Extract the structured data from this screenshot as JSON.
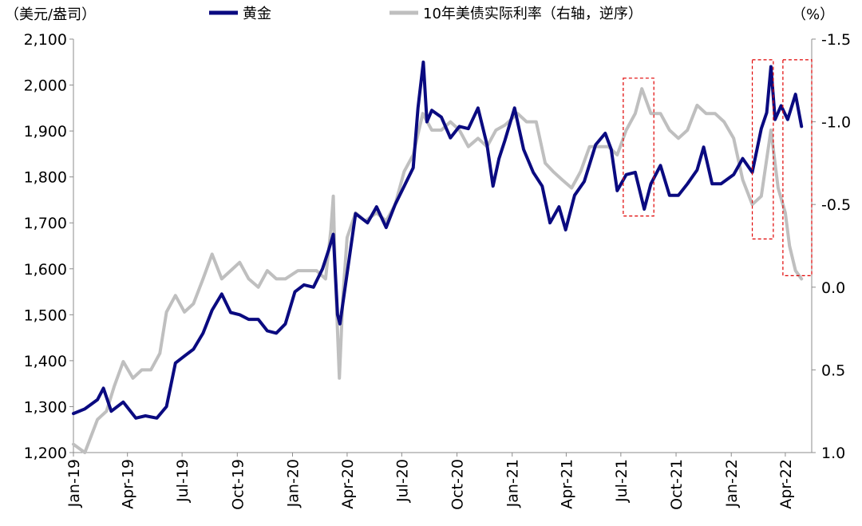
{
  "chart_data": {
    "type": "line",
    "units": {
      "left": "（美元/盎司）",
      "right": "（%）"
    },
    "legend": [
      {
        "label": "黄金",
        "color": "#0a0a80",
        "series_key": "gold"
      },
      {
        "label": "10年美债实际利率（右轴，逆序）",
        "color": "#bfbfbf",
        "series_key": "real_rate"
      }
    ],
    "x_ticks": [
      "Jan-19",
      "Apr-19",
      "Jul-19",
      "Oct-19",
      "Jan-20",
      "Apr-20",
      "Jul-20",
      "Oct-20",
      "Jan-21",
      "Apr-21",
      "Jul-21",
      "Oct-21",
      "Jan-22",
      "Apr-22"
    ],
    "left_axis": {
      "min": 1200,
      "max": 2100,
      "ticks": [
        "1,200",
        "1,300",
        "1,400",
        "1,500",
        "1,600",
        "1,700",
        "1,800",
        "1,900",
        "2,000",
        "2,100"
      ],
      "values": [
        1200,
        1300,
        1400,
        1500,
        1600,
        1700,
        1800,
        1900,
        2000,
        2100
      ]
    },
    "right_axis": {
      "min": -1.5,
      "max": 1.0,
      "inverted": true,
      "ticks": [
        "-1.5",
        "-1.0",
        "-0.5",
        "0.0",
        "0.5",
        "1.0"
      ],
      "values": [
        -1.5,
        -1.0,
        -0.5,
        0.0,
        0.5,
        1.0
      ],
      "tick_colors": [
        "#e00000",
        "#e00000",
        "#e00000",
        "#000000",
        "#000000",
        "#000000"
      ]
    },
    "series": [
      {
        "key": "gold",
        "name": "黄金",
        "axis": "left",
        "color": "#0a0a80",
        "points": [
          [
            "2019-01-01",
            1285
          ],
          [
            "2019-01-20",
            1295
          ],
          [
            "2019-02-10",
            1315
          ],
          [
            "2019-02-20",
            1340
          ],
          [
            "2019-03-05",
            1290
          ],
          [
            "2019-03-25",
            1310
          ],
          [
            "2019-04-15",
            1275
          ],
          [
            "2019-05-01",
            1280
          ],
          [
            "2019-05-20",
            1275
          ],
          [
            "2019-06-05",
            1300
          ],
          [
            "2019-06-20",
            1395
          ],
          [
            "2019-07-05",
            1410
          ],
          [
            "2019-07-20",
            1425
          ],
          [
            "2019-08-05",
            1460
          ],
          [
            "2019-08-20",
            1510
          ],
          [
            "2019-09-05",
            1545
          ],
          [
            "2019-09-20",
            1505
          ],
          [
            "2019-10-05",
            1500
          ],
          [
            "2019-10-20",
            1490
          ],
          [
            "2019-11-05",
            1490
          ],
          [
            "2019-11-20",
            1465
          ],
          [
            "2019-12-05",
            1460
          ],
          [
            "2019-12-20",
            1480
          ],
          [
            "2020-01-05",
            1550
          ],
          [
            "2020-01-20",
            1565
          ],
          [
            "2020-02-05",
            1560
          ],
          [
            "2020-02-20",
            1600
          ],
          [
            "2020-03-01",
            1640
          ],
          [
            "2020-03-09",
            1675
          ],
          [
            "2020-03-16",
            1500
          ],
          [
            "2020-03-20",
            1480
          ],
          [
            "2020-04-01",
            1590
          ],
          [
            "2020-04-15",
            1720
          ],
          [
            "2020-05-05",
            1700
          ],
          [
            "2020-05-20",
            1735
          ],
          [
            "2020-06-05",
            1690
          ],
          [
            "2020-06-20",
            1740
          ],
          [
            "2020-07-05",
            1780
          ],
          [
            "2020-07-20",
            1820
          ],
          [
            "2020-07-28",
            1950
          ],
          [
            "2020-08-06",
            2050
          ],
          [
            "2020-08-12",
            1920
          ],
          [
            "2020-08-20",
            1945
          ],
          [
            "2020-09-05",
            1930
          ],
          [
            "2020-09-20",
            1885
          ],
          [
            "2020-10-05",
            1910
          ],
          [
            "2020-10-20",
            1905
          ],
          [
            "2020-11-05",
            1950
          ],
          [
            "2020-11-20",
            1870
          ],
          [
            "2020-11-30",
            1780
          ],
          [
            "2020-12-10",
            1840
          ],
          [
            "2020-12-20",
            1880
          ],
          [
            "2021-01-05",
            1950
          ],
          [
            "2021-01-20",
            1860
          ],
          [
            "2021-02-05",
            1810
          ],
          [
            "2021-02-20",
            1780
          ],
          [
            "2021-03-05",
            1700
          ],
          [
            "2021-03-20",
            1735
          ],
          [
            "2021-03-31",
            1685
          ],
          [
            "2021-04-15",
            1760
          ],
          [
            "2021-05-01",
            1790
          ],
          [
            "2021-05-20",
            1870
          ],
          [
            "2021-06-05",
            1895
          ],
          [
            "2021-06-15",
            1860
          ],
          [
            "2021-06-25",
            1770
          ],
          [
            "2021-07-10",
            1805
          ],
          [
            "2021-07-25",
            1810
          ],
          [
            "2021-08-09",
            1730
          ],
          [
            "2021-08-20",
            1785
          ],
          [
            "2021-09-05",
            1825
          ],
          [
            "2021-09-20",
            1760
          ],
          [
            "2021-10-05",
            1760
          ],
          [
            "2021-10-20",
            1785
          ],
          [
            "2021-11-05",
            1815
          ],
          [
            "2021-11-16",
            1865
          ],
          [
            "2021-11-30",
            1785
          ],
          [
            "2021-12-15",
            1785
          ],
          [
            "2022-01-05",
            1805
          ],
          [
            "2022-01-20",
            1840
          ],
          [
            "2022-02-05",
            1810
          ],
          [
            "2022-02-20",
            1905
          ],
          [
            "2022-03-01",
            1940
          ],
          [
            "2022-03-08",
            2040
          ],
          [
            "2022-03-15",
            1925
          ],
          [
            "2022-03-25",
            1955
          ],
          [
            "2022-04-05",
            1925
          ],
          [
            "2022-04-18",
            1980
          ],
          [
            "2022-04-28",
            1910
          ]
        ]
      },
      {
        "key": "real_rate",
        "name": "10年美债实际利率（右轴，逆序）",
        "axis": "right",
        "color": "#bfbfbf",
        "points": [
          [
            "2019-01-01",
            0.95
          ],
          [
            "2019-01-20",
            1.0
          ],
          [
            "2019-02-10",
            0.8
          ],
          [
            "2019-02-25",
            0.75
          ],
          [
            "2019-03-10",
            0.6
          ],
          [
            "2019-03-25",
            0.45
          ],
          [
            "2019-04-10",
            0.55
          ],
          [
            "2019-04-25",
            0.5
          ],
          [
            "2019-05-10",
            0.5
          ],
          [
            "2019-05-25",
            0.4
          ],
          [
            "2019-06-05",
            0.15
          ],
          [
            "2019-06-20",
            0.05
          ],
          [
            "2019-07-05",
            0.15
          ],
          [
            "2019-07-20",
            0.1
          ],
          [
            "2019-08-05",
            -0.05
          ],
          [
            "2019-08-20",
            -0.2
          ],
          [
            "2019-09-05",
            -0.05
          ],
          [
            "2019-09-20",
            -0.1
          ],
          [
            "2019-10-05",
            -0.15
          ],
          [
            "2019-10-20",
            -0.05
          ],
          [
            "2019-11-05",
            0.0
          ],
          [
            "2019-11-20",
            -0.1
          ],
          [
            "2019-12-05",
            -0.05
          ],
          [
            "2019-12-20",
            -0.05
          ],
          [
            "2020-01-10",
            -0.1
          ],
          [
            "2020-01-25",
            -0.1
          ],
          [
            "2020-02-10",
            -0.1
          ],
          [
            "2020-02-25",
            -0.05
          ],
          [
            "2020-03-05",
            -0.35
          ],
          [
            "2020-03-09",
            -0.55
          ],
          [
            "2020-03-12",
            -0.1
          ],
          [
            "2020-03-19",
            0.55
          ],
          [
            "2020-03-25",
            0.05
          ],
          [
            "2020-04-01",
            -0.3
          ],
          [
            "2020-04-15",
            -0.45
          ],
          [
            "2020-05-01",
            -0.4
          ],
          [
            "2020-05-20",
            -0.45
          ],
          [
            "2020-06-05",
            -0.4
          ],
          [
            "2020-06-20",
            -0.5
          ],
          [
            "2020-07-05",
            -0.7
          ],
          [
            "2020-07-20",
            -0.8
          ],
          [
            "2020-08-05",
            -1.05
          ],
          [
            "2020-08-20",
            -0.95
          ],
          [
            "2020-09-05",
            -0.95
          ],
          [
            "2020-09-20",
            -1.0
          ],
          [
            "2020-10-05",
            -0.95
          ],
          [
            "2020-10-20",
            -0.85
          ],
          [
            "2020-11-05",
            -0.9
          ],
          [
            "2020-11-20",
            -0.85
          ],
          [
            "2020-12-05",
            -0.95
          ],
          [
            "2020-12-20",
            -0.98
          ],
          [
            "2021-01-10",
            -1.05
          ],
          [
            "2021-01-25",
            -1.0
          ],
          [
            "2021-02-10",
            -1.0
          ],
          [
            "2021-02-25",
            -0.75
          ],
          [
            "2021-03-10",
            -0.7
          ],
          [
            "2021-03-25",
            -0.65
          ],
          [
            "2021-04-10",
            -0.6
          ],
          [
            "2021-04-25",
            -0.7
          ],
          [
            "2021-05-10",
            -0.85
          ],
          [
            "2021-05-25",
            -0.85
          ],
          [
            "2021-06-10",
            -0.85
          ],
          [
            "2021-06-25",
            -0.8
          ],
          [
            "2021-07-10",
            -0.95
          ],
          [
            "2021-07-25",
            -1.05
          ],
          [
            "2021-08-05",
            -1.2
          ],
          [
            "2021-08-20",
            -1.05
          ],
          [
            "2021-09-05",
            -1.05
          ],
          [
            "2021-09-20",
            -0.95
          ],
          [
            "2021-10-05",
            -0.9
          ],
          [
            "2021-10-20",
            -0.95
          ],
          [
            "2021-11-05",
            -1.1
          ],
          [
            "2021-11-20",
            -1.05
          ],
          [
            "2021-12-05",
            -1.05
          ],
          [
            "2021-12-20",
            -1.0
          ],
          [
            "2022-01-05",
            -0.9
          ],
          [
            "2022-01-20",
            -0.65
          ],
          [
            "2022-02-05",
            -0.5
          ],
          [
            "2022-02-20",
            -0.55
          ],
          [
            "2022-03-08",
            -0.95
          ],
          [
            "2022-03-20",
            -0.6
          ],
          [
            "2022-04-01",
            -0.45
          ],
          [
            "2022-04-08",
            -0.25
          ],
          [
            "2022-04-18",
            -0.1
          ],
          [
            "2022-04-28",
            -0.05
          ]
        ]
      }
    ],
    "highlight_boxes": [
      {
        "start": "2021-07-05",
        "end": "2021-08-25",
        "left_top": 2015,
        "left_bottom": 1715
      },
      {
        "start": "2022-02-05",
        "end": "2022-03-12",
        "left_top": 2055,
        "left_bottom": 1665
      },
      {
        "start": "2022-03-28",
        "end": "2022-05-15",
        "left_top": 2055,
        "left_bottom": 1585
      }
    ],
    "box_color": "#e00000"
  }
}
